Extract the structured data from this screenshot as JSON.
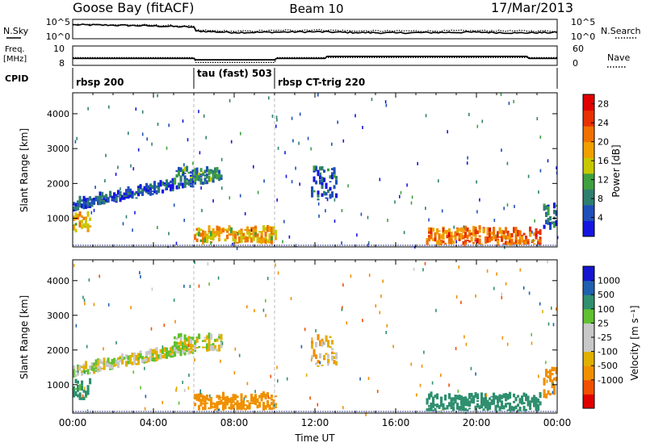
{
  "header": {
    "title_left": "Goose Bay (fitACF)",
    "title_center": "Beam 10",
    "title_right": "17/Mar/2013"
  },
  "left_labels": {
    "nsky": "N.Sky",
    "freq_line1": "Freq.",
    "freq_line2": "[MHz]",
    "cpid": "CPID"
  },
  "right_labels": {
    "nsearch": "N.Search",
    "nave": "Nave"
  },
  "colors": {
    "power_scale": [
      "#1515e0",
      "#1f4fb8",
      "#2f7f6f",
      "#3fa03f",
      "#c8c800",
      "#f0a000",
      "#f07000",
      "#e83000",
      "#e00000"
    ],
    "velocity_scale": [
      "#e00000",
      "#f05000",
      "#f09000",
      "#e0b000",
      "#c8c8c8",
      "#c8c8c8",
      "#60c030",
      "#2f8f6f",
      "#2060b0",
      "#1515d0"
    ]
  },
  "chart_data": [
    {
      "type": "line",
      "panel": "noise",
      "y_left_ticks": [
        "10^5",
        "10^0"
      ],
      "y_right_ticks": [
        "10^5",
        "10^0"
      ],
      "series": [
        {
          "name": "N.Sky",
          "style": "solid",
          "x_hours": [
            0,
            2,
            4,
            6,
            6.1,
            8,
            10,
            12,
            14,
            16,
            18,
            20,
            22,
            24
          ],
          "values_log": [
            3.6,
            3.5,
            3.3,
            3.0,
            2.0,
            1.6,
            1.7,
            1.8,
            1.6,
            1.5,
            1.6,
            1.7,
            1.5,
            1.6
          ]
        },
        {
          "name": "N.Search",
          "style": "dotted",
          "x_hours": [
            0,
            2,
            4,
            6,
            6.1,
            8,
            10,
            12,
            14,
            16,
            18,
            20,
            22,
            24
          ],
          "values_log": [
            3.7,
            3.6,
            3.5,
            3.2,
            2.2,
            1.9,
            2.1,
            2.3,
            2.0,
            2.0,
            2.0,
            2.1,
            2.0,
            2.0
          ]
        }
      ],
      "ylim": [
        0,
        5
      ]
    },
    {
      "type": "line",
      "panel": "frequency",
      "y_left_ticks": [
        "10",
        "8"
      ],
      "y_right_ticks": [
        "60",
        "0"
      ],
      "series": [
        {
          "name": "Freq.",
          "style": "solid",
          "x_hours": [
            0,
            6,
            6.1,
            10,
            10.1,
            12.5,
            12.6,
            22.5,
            22.6,
            24
          ],
          "values": [
            8.6,
            8.6,
            8.4,
            8.4,
            8.6,
            8.6,
            8.9,
            8.9,
            8.6,
            8.6
          ]
        },
        {
          "name": "Nave",
          "style": "dotted",
          "x_hours": [
            0,
            6,
            6.1,
            10,
            10.1,
            24
          ],
          "values": [
            24,
            24,
            9,
            9,
            24,
            24
          ]
        }
      ]
    },
    {
      "type": "table",
      "panel": "cpid",
      "segments": [
        {
          "label": "rbsp 200",
          "start_hour": 0,
          "end_hour": 6
        },
        {
          "label": "tau (fast) 503",
          "start_hour": 6,
          "end_hour": 10
        },
        {
          "label": "rbsp CT-trig 220",
          "start_hour": 10,
          "end_hour": 24
        }
      ]
    },
    {
      "type": "heatmap",
      "panel": "power",
      "ylabel": "Slant Range [km]",
      "xlim_hours": [
        0,
        24
      ],
      "ylim_km": [
        180,
        4600
      ],
      "y_ticks": [
        1000,
        2000,
        3000,
        4000
      ],
      "colorbar_label": "Power [dB]",
      "colorbar_ticks": [
        4,
        8,
        12,
        16,
        20,
        24,
        28
      ],
      "colorbar_range": [
        0,
        30
      ],
      "regions": [
        {
          "t0": 0.0,
          "t1": 6.0,
          "r0": 1300,
          "r1": 2050,
          "v": 5,
          "trend": 700
        },
        {
          "t0": 0.0,
          "t1": 0.8,
          "r0": 550,
          "r1": 1050,
          "v": 18
        },
        {
          "t0": 5.0,
          "t1": 7.3,
          "r0": 1950,
          "r1": 2350,
          "v": 9
        },
        {
          "t0": 6.0,
          "t1": 10.0,
          "r0": 250,
          "r1": 650,
          "v": 18
        },
        {
          "t0": 11.8,
          "t1": 13.0,
          "r0": 1500,
          "r1": 2400,
          "v": 6
        },
        {
          "t0": 17.5,
          "t1": 23.2,
          "r0": 200,
          "r1": 650,
          "v": 22
        },
        {
          "t0": 23.3,
          "t1": 24.0,
          "r0": 600,
          "r1": 1400,
          "v": 7
        }
      ]
    },
    {
      "type": "heatmap",
      "panel": "velocity",
      "ylabel": "Slant Range [km]",
      "xlabel": "Time UT",
      "x_ticks": [
        "00:00",
        "04:00",
        "08:00",
        "12:00",
        "16:00",
        "20:00",
        "00:00"
      ],
      "xlim_hours": [
        0,
        24
      ],
      "ylim_km": [
        180,
        4600
      ],
      "y_ticks": [
        1000,
        2000,
        3000,
        4000
      ],
      "colorbar_label": "Velocity [m s⁻¹]",
      "colorbar_ticks": [
        "1000",
        "500",
        "100",
        "25",
        "-25",
        "-100",
        "-500",
        "-1000"
      ],
      "regions": [
        {
          "t0": 0.0,
          "t1": 6.0,
          "r0": 1300,
          "r1": 2050,
          "v": 0,
          "trend": 700
        },
        {
          "t0": 0.0,
          "t1": 0.8,
          "r0": 550,
          "r1": 1050,
          "v": 150
        },
        {
          "t0": 5.0,
          "t1": 7.3,
          "r0": 1950,
          "r1": 2350,
          "v": 0
        },
        {
          "t0": 6.0,
          "t1": 10.0,
          "r0": 250,
          "r1": 650,
          "v": -250
        },
        {
          "t0": 11.8,
          "t1": 13.0,
          "r0": 1500,
          "r1": 2400,
          "v": -80
        },
        {
          "t0": 17.5,
          "t1": 23.2,
          "r0": 200,
          "r1": 650,
          "v": 300
        },
        {
          "t0": 23.3,
          "t1": 24.0,
          "r0": 600,
          "r1": 1400,
          "v": -200
        }
      ]
    }
  ]
}
